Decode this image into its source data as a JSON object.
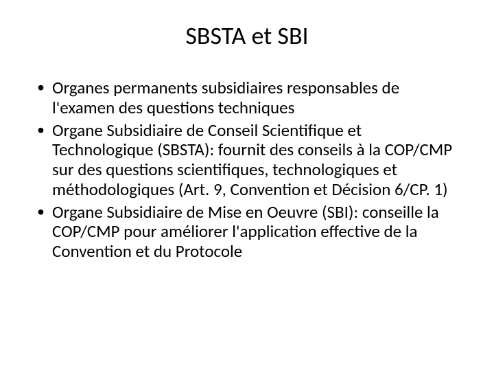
{
  "slide": {
    "title": "SBSTA et SBI",
    "title_fontsize": 36,
    "title_color": "#000000",
    "title_align": "center",
    "background_color": "#ffffff",
    "bullets": [
      "Organes permanents subsidiaires responsables de l'examen des questions techniques",
      "Organe Subsidiaire de Conseil Scientifique et Technologique (SBSTA): fournit des conseils à la COP/CMP sur des questions scientifiques, technologiques et méthodologiques (Art. 9, Convention et Décision 6/CP. 1)",
      "Organe Subsidiaire de Mise en Oeuvre (SBI): conseille la COP/CMP pour améliorer l'application effective de la Convention et du Protocole"
    ],
    "bullet_fontsize": 25,
    "bullet_color": "#000000",
    "bullet_marker": "•",
    "font_family": "Calibri"
  }
}
